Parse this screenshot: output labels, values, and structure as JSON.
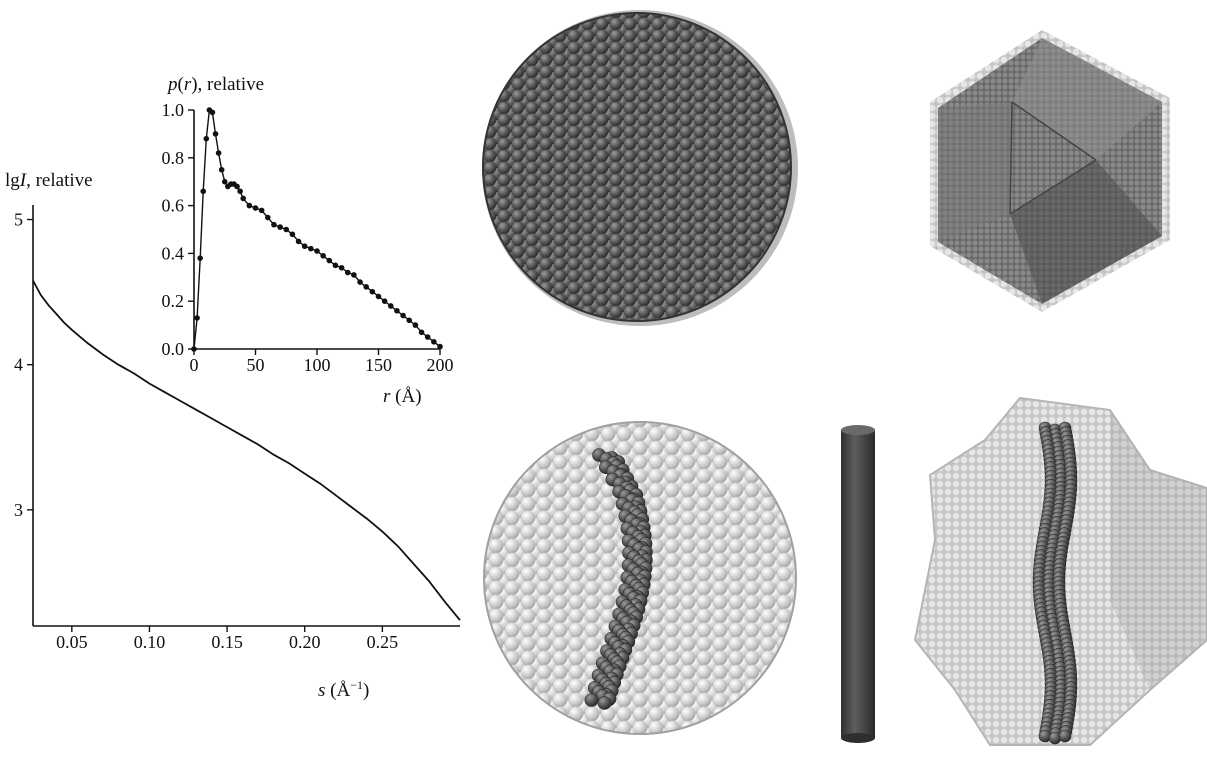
{
  "chart_data": [
    {
      "type": "line",
      "title": "",
      "ylabel_pre": "lg",
      "ylabel_var": "I",
      "ylabel_post": ", relative",
      "xlabel_var": "s",
      "xlabel_unit_pre": " (Å",
      "xlabel_unit_sup": "−1",
      "xlabel_unit_post": ")",
      "xlim": [
        0.025,
        0.3
      ],
      "ylim": [
        2.2,
        5.1
      ],
      "xticks": [
        {
          "value": 0.05,
          "label": "0.05"
        },
        {
          "value": 0.1,
          "label": "0.10"
        },
        {
          "value": 0.15,
          "label": "0.15"
        },
        {
          "value": 0.2,
          "label": "0.20"
        },
        {
          "value": 0.25,
          "label": "0.25"
        }
      ],
      "yticks": [
        {
          "value": 3,
          "label": "3"
        },
        {
          "value": 4,
          "label": "4"
        },
        {
          "value": 5,
          "label": "5"
        }
      ],
      "series": [
        {
          "x": [
            0.025,
            0.03,
            0.035,
            0.04,
            0.045,
            0.05,
            0.06,
            0.07,
            0.08,
            0.09,
            0.1,
            0.11,
            0.12,
            0.13,
            0.14,
            0.15,
            0.16,
            0.17,
            0.18,
            0.19,
            0.2,
            0.21,
            0.22,
            0.23,
            0.24,
            0.25,
            0.26,
            0.27,
            0.28,
            0.29,
            0.3
          ],
          "y": [
            4.58,
            4.48,
            4.41,
            4.35,
            4.29,
            4.24,
            4.15,
            4.07,
            4.0,
            3.94,
            3.87,
            3.81,
            3.75,
            3.69,
            3.63,
            3.57,
            3.51,
            3.45,
            3.38,
            3.32,
            3.25,
            3.18,
            3.1,
            3.02,
            2.94,
            2.85,
            2.75,
            2.63,
            2.51,
            2.37,
            2.24
          ]
        }
      ]
    },
    {
      "type": "line",
      "title": "",
      "ylabel_var": "p",
      "ylabel_mid": "(",
      "ylabel_var2": "r",
      "ylabel_post": "), relative",
      "xlabel_var": "r",
      "xlabel_unit": " (Å)",
      "xlim": [
        0,
        200
      ],
      "ylim": [
        0,
        1.0
      ],
      "xticks": [
        {
          "value": 0,
          "label": "0"
        },
        {
          "value": 50,
          "label": "50"
        },
        {
          "value": 100,
          "label": "100"
        },
        {
          "value": 150,
          "label": "150"
        },
        {
          "value": 200,
          "label": "200"
        }
      ],
      "yticks": [
        {
          "value": 0.0,
          "label": "0.0"
        },
        {
          "value": 0.2,
          "label": "0.2"
        },
        {
          "value": 0.4,
          "label": "0.4"
        },
        {
          "value": 0.6,
          "label": "0.6"
        },
        {
          "value": 0.8,
          "label": "0.8"
        },
        {
          "value": 1.0,
          "label": "1.0"
        }
      ],
      "series": [
        {
          "markers": true,
          "x": [
            0,
            2.5,
            5,
            7.5,
            10,
            12.5,
            15,
            17.5,
            20,
            22.5,
            25,
            27.5,
            30,
            32.5,
            35,
            37.5,
            40,
            45,
            50,
            55,
            60,
            65,
            70,
            75,
            80,
            85,
            90,
            95,
            100,
            105,
            110,
            115,
            120,
            125,
            130,
            135,
            140,
            145,
            150,
            155,
            160,
            165,
            170,
            175,
            180,
            185,
            190,
            195,
            200
          ],
          "y": [
            0.0,
            0.13,
            0.38,
            0.66,
            0.88,
            1.0,
            0.99,
            0.9,
            0.82,
            0.75,
            0.7,
            0.68,
            0.69,
            0.69,
            0.68,
            0.66,
            0.63,
            0.6,
            0.59,
            0.58,
            0.55,
            0.52,
            0.51,
            0.5,
            0.48,
            0.45,
            0.43,
            0.42,
            0.41,
            0.39,
            0.37,
            0.35,
            0.34,
            0.32,
            0.31,
            0.28,
            0.26,
            0.24,
            0.22,
            0.2,
            0.18,
            0.16,
            0.14,
            0.12,
            0.1,
            0.07,
            0.05,
            0.03,
            0.01
          ]
        }
      ]
    }
  ],
  "colors": {
    "sphere_dark": "#4a4a4a",
    "sphere_light": "#c9c9c9",
    "rod": "#3f3f3f",
    "line": "#111111"
  }
}
